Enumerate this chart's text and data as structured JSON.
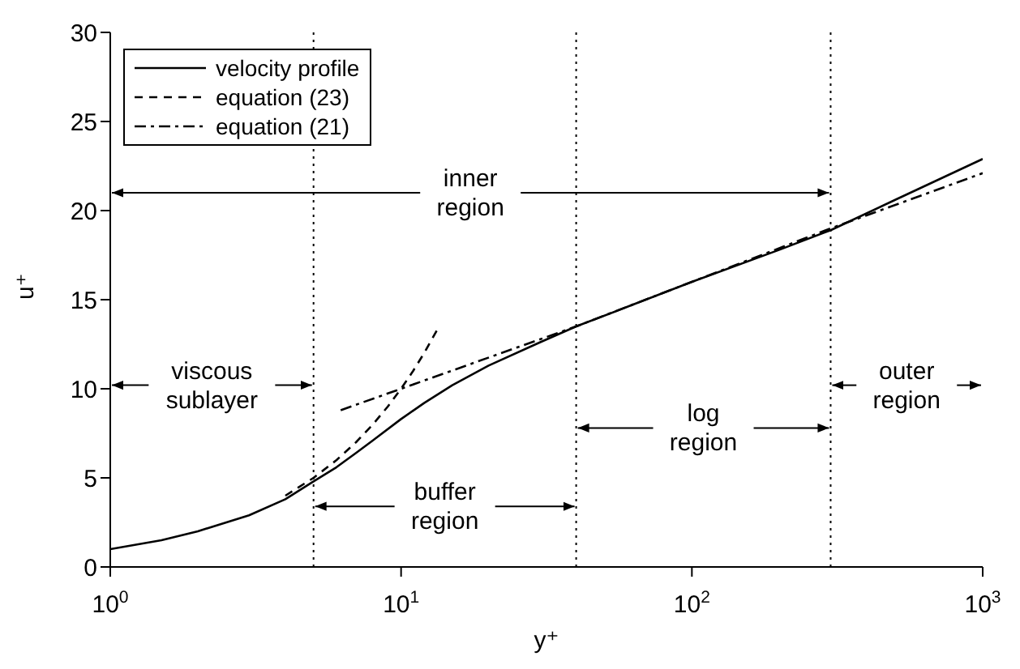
{
  "chart_data": {
    "type": "line",
    "xlabel": "y⁺",
    "ylabel": "u⁺",
    "log": "x",
    "xlim": [
      1,
      1000
    ],
    "ylim": [
      0,
      30
    ],
    "xticks": [
      {
        "value": 1,
        "label": "10$^{0}$"
      },
      {
        "value": 10,
        "label": "10$^{1}$"
      },
      {
        "value": 100,
        "label": "10$^{2}$"
      },
      {
        "value": 1000,
        "label": "10$^{3}$"
      }
    ],
    "yticks": [
      0,
      5,
      10,
      15,
      20,
      25,
      30
    ],
    "grid": false,
    "legend": "top left",
    "marker": "none",
    "series": [
      {
        "name": "velocity profile",
        "color": "#000000",
        "line_style": "solid",
        "x": [
          1,
          1.5,
          2,
          3,
          4,
          5,
          6,
          7,
          8,
          10,
          12,
          15,
          20,
          30,
          40,
          60,
          100,
          200,
          300,
          500,
          1000
        ],
        "values": [
          1.0,
          1.5,
          2.0,
          2.9,
          3.8,
          4.8,
          5.6,
          6.4,
          7.1,
          8.3,
          9.2,
          10.2,
          11.3,
          12.6,
          13.5,
          14.6,
          16.0,
          17.8,
          18.9,
          20.6,
          22.9
        ]
      },
      {
        "name": "equation (23)",
        "color": "#000000",
        "line_style": "dashed",
        "x": [
          4,
          5,
          6,
          7,
          8,
          9,
          10,
          11,
          12,
          13.3
        ],
        "values": [
          4,
          5,
          6,
          7,
          8,
          9,
          10,
          11,
          12,
          13.3
        ]
      },
      {
        "name": "equation (21)",
        "color": "#000000",
        "line_style": "dashdot",
        "x": [
          6.2,
          10,
          40,
          300,
          1000
        ],
        "values": [
          8.8,
          10.0,
          13.5,
          19.0,
          22.1
        ]
      }
    ],
    "ref_lines": [
      {
        "axis": "x",
        "value": 5,
        "line_style": "dotted"
      },
      {
        "axis": "x",
        "value": 40,
        "line_style": "dotted"
      },
      {
        "axis": "x",
        "value": 300,
        "line_style": "dotted"
      }
    ],
    "annotations": [
      {
        "text": "inner\nregion",
        "x": 300,
        "y": 21
      },
      {
        "text": "viscous\nsublayer",
        "x": 5,
        "y": 10.2
      },
      {
        "text": "buffer\nregion",
        "x": 40,
        "y": 3.4
      },
      {
        "text": "log\nregion",
        "x": 300,
        "y": 7.8
      },
      "outer\nregion"
    ]
  }
}
